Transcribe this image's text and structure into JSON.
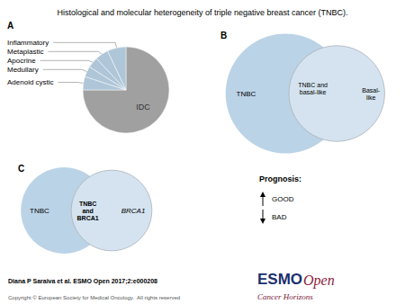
{
  "chart_data": [
    {
      "type": "pie",
      "title": "Histological and molecular heterogeneity of triple negative breast cancer (TNBC).",
      "categories": [
        "IDC",
        "Adenoid cystic",
        "Medullary",
        "Apocrine",
        "Metaplastic",
        "Inflammatory"
      ],
      "values": [
        75,
        5,
        4,
        4,
        5,
        7
      ],
      "colors": [
        "#a0a0a0",
        "#aec6d8",
        "#aec6d8",
        "#aec6d8",
        "#aec6d8",
        "#aec6d8"
      ],
      "annotations": [
        {
          "text": "A"
        },
        {
          "text": "Diana P Saraiva et al. ESMO Open 2017;2:e000208"
        },
        {
          "text": "Copyright © European Society for Medical Oncology.  All rights reserved",
          "color": "#555555"
        },
        {
          "text": "ESMO",
          "color": "#1a2f6e"
        },
        {
          "text": "Open",
          "color": "#8b1a3a"
        },
        {
          "text": "Cancer Horizons",
          "color": "#7a1a3a"
        }
      ]
    },
    {
      "type": "venn",
      "categories": [
        "TNBC",
        "TNBC and\nbasal-like",
        "Basal-\nlike"
      ],
      "color": "#aac8e0",
      "annotations": [
        {
          "text": "B"
        }
      ]
    },
    {
      "type": "venn",
      "categories": [
        "TNBC",
        "TNBC\nand\nBRCA1",
        "BRCA1"
      ],
      "color": "#aac8e0",
      "annotations": [
        {
          "text": "C"
        }
      ]
    },
    {
      "type": "key",
      "title": "Prognosis:",
      "categories": [
        "GOOD",
        "BAD"
      ]
    }
  ]
}
